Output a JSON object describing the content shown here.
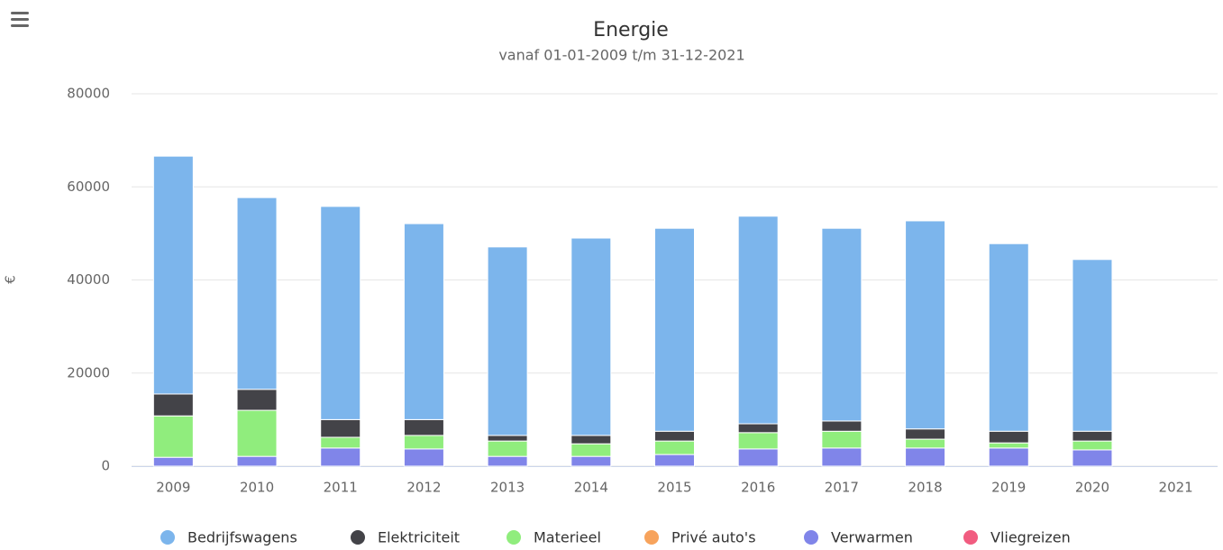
{
  "chart_data": {
    "type": "stacked_bar",
    "title": "Energie",
    "subtitle": "vanaf 01-01-2009 t/m 31-12-2021",
    "y_label": "€",
    "categories": [
      "2009",
      "2010",
      "2011",
      "2012",
      "2013",
      "2014",
      "2015",
      "2016",
      "2017",
      "2018",
      "2019",
      "2020",
      "2021"
    ],
    "series": [
      {
        "name": "Bedrijfswagens",
        "color": "#7cb5ec",
        "values": [
          51100,
          41200,
          45800,
          42100,
          40500,
          42400,
          43600,
          44600,
          41400,
          44700,
          40300,
          36900,
          0
        ]
      },
      {
        "name": "Elektriciteit",
        "color": "#434348",
        "values": [
          4700,
          4500,
          3800,
          3400,
          1200,
          1800,
          2100,
          1900,
          2200,
          2200,
          2500,
          2100,
          0
        ]
      },
      {
        "name": "Materieel",
        "color": "#90ed7d",
        "values": [
          8900,
          9900,
          2300,
          2900,
          3300,
          2700,
          2900,
          3500,
          3600,
          1900,
          1100,
          1900,
          0
        ]
      },
      {
        "name": "Privé auto's",
        "color": "#f7a35c",
        "values": [
          0,
          0,
          0,
          0,
          0,
          0,
          0,
          0,
          0,
          0,
          0,
          0,
          0
        ]
      },
      {
        "name": "Verwarmen",
        "color": "#8085e9",
        "values": [
          1900,
          2100,
          3900,
          3700,
          2100,
          2100,
          2500,
          3700,
          3900,
          3900,
          3900,
          3500,
          0
        ]
      },
      {
        "name": "Vliegreizen",
        "color": "#f15c80",
        "values": [
          0,
          0,
          0,
          0,
          0,
          0,
          0,
          0,
          0,
          0,
          0,
          0,
          0
        ]
      }
    ],
    "ylim": [
      0,
      80000
    ],
    "yticks": [
      0,
      20000,
      40000,
      60000,
      80000
    ],
    "grid": true,
    "legend": "bottom"
  }
}
